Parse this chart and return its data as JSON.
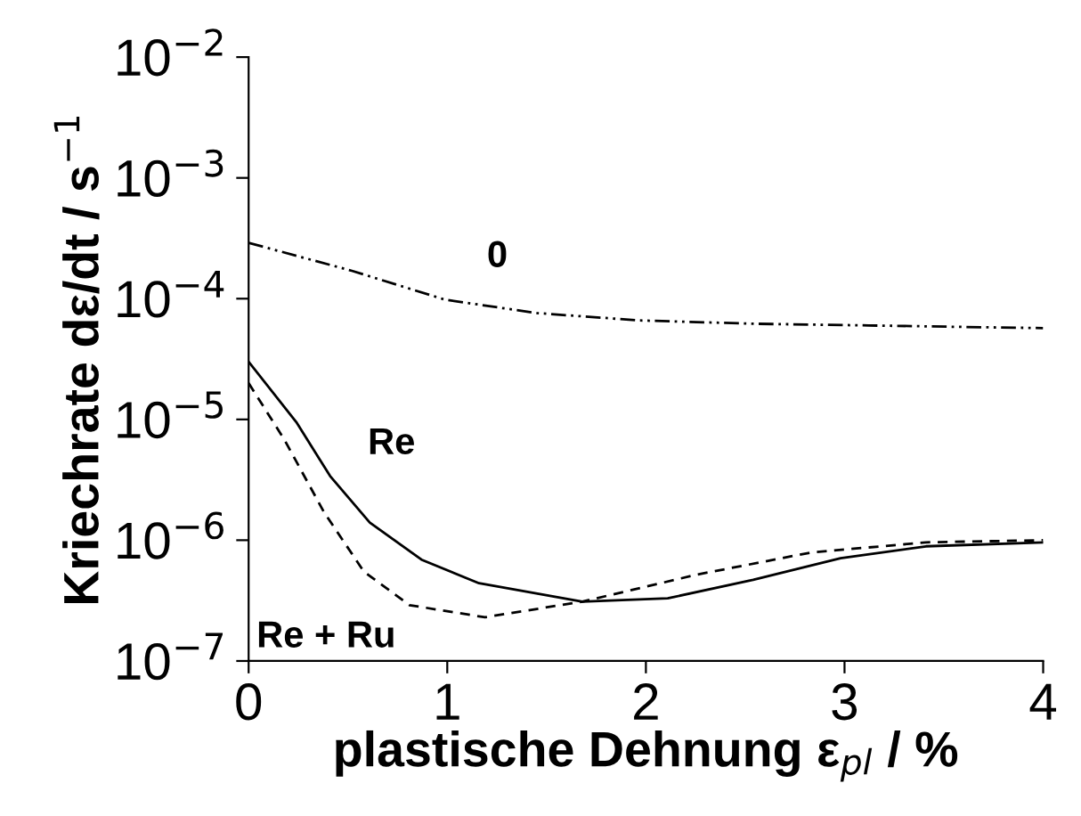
{
  "chart_data": {
    "type": "line",
    "xlabel": "plastische Dehnung ε$_{pl}$ / %",
    "ylabel": "Kriechrate dε/dt / s$^{−1}$",
    "log": "y",
    "xlim": [
      0,
      4
    ],
    "xticks": [
      0,
      1,
      2,
      3,
      4
    ],
    "ylim": [
      1e-07,
      0.01
    ],
    "yticks": [
      {
        "value": 1e-07,
        "label": "10$^{−7}$"
      },
      {
        "value": 1e-06,
        "label": "10$^{−6}$"
      },
      {
        "value": 1e-05,
        "label": "10$^{−5}$"
      },
      {
        "value": 0.0001,
        "label": "10$^{−4}$"
      },
      {
        "value": 0.001,
        "label": "10$^{−3}$"
      },
      {
        "value": 0.01,
        "label": "10$^{−2}$"
      }
    ],
    "grid": false,
    "legend": false,
    "marker": "none",
    "series": [
      {
        "name": "0",
        "color": "#000000",
        "line_style": "dashdot",
        "x": [
          0,
          0.52,
          0.99,
          1.45,
          1.97,
          2.54,
          3.12,
          4.0
        ],
        "values": [
          0.00029,
          0.00017,
          9.8e-05,
          7.6e-05,
          6.6e-05,
          6.2e-05,
          6e-05,
          5.7e-05
        ]
      },
      {
        "name": "Re",
        "color": "#000000",
        "line_style": "solid",
        "x": [
          0,
          0.24,
          0.41,
          0.61,
          0.87,
          1.16,
          1.68,
          2.11,
          2.54,
          2.98,
          3.41,
          4.0
        ],
        "values": [
          3e-05,
          9.5e-06,
          3.4e-06,
          1.4e-06,
          6.9e-07,
          4.4e-07,
          3.1e-07,
          3.3e-07,
          4.7e-07,
          7.1e-07,
          8.9e-07,
          9.6e-07
        ]
      },
      {
        "name": "Re + Ru",
        "color": "#000000",
        "line_style": "dashed",
        "x": [
          0,
          0.18,
          0.38,
          0.58,
          0.81,
          1.19,
          1.68,
          2.26,
          2.83,
          3.41,
          4.0
        ],
        "values": [
          2e-05,
          6.8e-06,
          1.7e-06,
          5.5e-07,
          2.9e-07,
          2.3e-07,
          3.1e-07,
          5.2e-07,
          7.9e-07,
          9.6e-07,
          1e-06
        ]
      }
    ]
  }
}
